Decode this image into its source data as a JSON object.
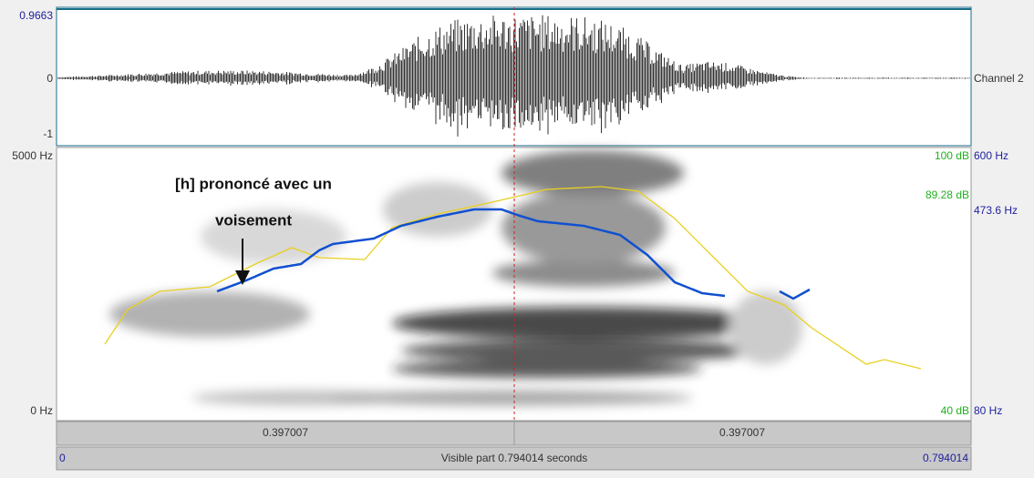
{
  "waveform": {
    "ymax": "0.9663",
    "zero": "0",
    "ymin": "-1",
    "channel": "Channel 2"
  },
  "spectrogram": {
    "fmax": "5000 Hz",
    "fmin": "0 Hz",
    "intensity_max": "100 dB",
    "intensity_cursor": "89.28 dB",
    "intensity_min": "40 dB",
    "pitch_max": "600 Hz",
    "pitch_cursor": "473.6 Hz",
    "pitch_min": "80 Hz"
  },
  "annotation": [
    "[h] prononcé avec un",
    "voisement"
  ],
  "time_bar": {
    "left_half": "0.397007",
    "right_half": "0.397007",
    "start": "0",
    "visible": "Visible part 0.794014 seconds",
    "end": "0.794014"
  }
}
